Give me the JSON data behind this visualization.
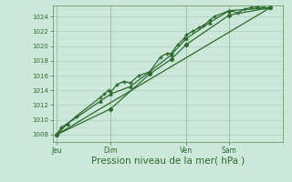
{
  "background_color": "#cce8da",
  "grid_color_major": "#aacfbc",
  "grid_color_minor": "#bddacb",
  "line_color": "#2d6a2d",
  "xlabel": "Pression niveau de la mer( hPa )",
  "xlabel_fontsize": 7.5,
  "yticks": [
    1008,
    1010,
    1012,
    1014,
    1016,
    1018,
    1020,
    1022,
    1024
  ],
  "ylim": [
    1007.0,
    1025.5
  ],
  "xlim": [
    0.0,
    1.07
  ],
  "xtick_labels": [
    "Jeu",
    "Dim",
    "Ven",
    "Sam"
  ],
  "xtick_positions": [
    0.02,
    0.27,
    0.62,
    0.82
  ],
  "series1_x": [
    0.02,
    0.04,
    0.07,
    0.11,
    0.22,
    0.24,
    0.26,
    0.27,
    0.3,
    0.33,
    0.36,
    0.4,
    0.45,
    0.5,
    0.53,
    0.55,
    0.58,
    0.61,
    0.62,
    0.65,
    0.68,
    0.7,
    0.73,
    0.75,
    0.82,
    0.86,
    0.89,
    0.92,
    0.95,
    0.98,
    1.01
  ],
  "series1_y": [
    1008.0,
    1009.0,
    1009.5,
    1010.5,
    1013.0,
    1013.5,
    1014.0,
    1013.8,
    1014.8,
    1015.2,
    1015.0,
    1016.0,
    1016.5,
    1018.5,
    1019.0,
    1019.0,
    1020.2,
    1021.0,
    1021.5,
    1022.0,
    1022.5,
    1022.8,
    1023.5,
    1024.0,
    1024.8,
    1024.5,
    1025.0,
    1025.2,
    1025.3,
    1025.2,
    1025.2
  ],
  "series2_x": [
    0.02,
    0.07,
    0.22,
    0.27,
    0.36,
    0.45,
    0.55,
    0.62,
    0.73,
    0.82,
    1.01
  ],
  "series2_y": [
    1008.0,
    1009.5,
    1012.5,
    1013.5,
    1014.5,
    1016.5,
    1018.8,
    1021.0,
    1023.2,
    1024.8,
    1025.2
  ],
  "series3_x": [
    0.02,
    0.27,
    0.45,
    0.55,
    0.62,
    0.82,
    1.01
  ],
  "series3_y": [
    1008.0,
    1011.5,
    1016.2,
    1018.2,
    1020.2,
    1024.2,
    1025.2
  ],
  "series4_x": [
    0.02,
    1.01
  ],
  "series4_y": [
    1008.0,
    1025.2
  ]
}
